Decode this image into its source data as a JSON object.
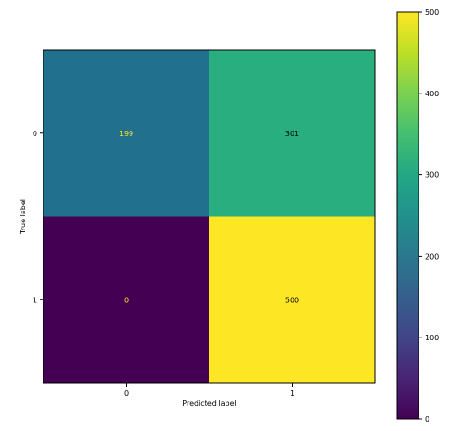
{
  "chart_data": {
    "type": "heatmap",
    "title": "",
    "xlabel": "Predicted label",
    "ylabel": "True label",
    "x_categories": [
      "0",
      "1"
    ],
    "y_categories": [
      "0",
      "1"
    ],
    "values": [
      [
        199,
        301
      ],
      [
        0,
        500
      ]
    ],
    "colormap": "viridis",
    "colorbar": {
      "min": 0,
      "max": 500,
      "ticks": [
        0,
        100,
        200,
        300,
        400,
        500
      ]
    },
    "cell_colors": [
      [
        "#21718e",
        "#29af7f"
      ],
      [
        "#440154",
        "#fde725"
      ]
    ],
    "text_colors": {
      "on_dark": "#fde725",
      "on_light": "#000000"
    },
    "grid": false,
    "legend": "colorbar-right"
  }
}
